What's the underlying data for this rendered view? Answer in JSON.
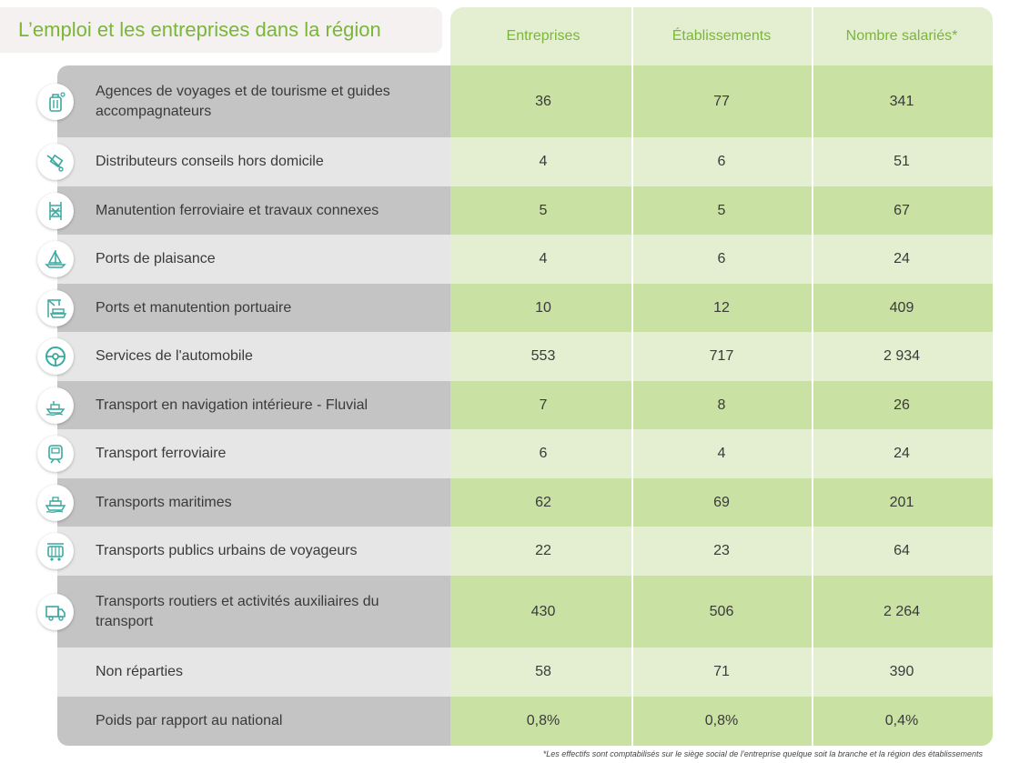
{
  "title": "L’emploi et les entreprises dans la région",
  "columns": [
    "Entreprises",
    "Établissements",
    "Nombre salariés*"
  ],
  "rows": [
    {
      "label": "Agences de voyages et de tourisme et guides accompagnateurs",
      "icon": "luggage-icon",
      "values": [
        "36",
        "77",
        "341"
      ]
    },
    {
      "label": "Distributeurs conseils hors domicile",
      "icon": "trolley-icon",
      "values": [
        "4",
        "6",
        "51"
      ]
    },
    {
      "label": "Manutention ferroviaire et travaux connexes",
      "icon": "rail-tools-icon",
      "values": [
        "5",
        "5",
        "67"
      ]
    },
    {
      "label": "Ports de plaisance",
      "icon": "sailboat-icon",
      "values": [
        "4",
        "6",
        "24"
      ]
    },
    {
      "label": "Ports et manutention portuaire",
      "icon": "port-crane-icon",
      "values": [
        "10",
        "12",
        "409"
      ]
    },
    {
      "label": "Services de l'automobile",
      "icon": "steering-wheel-icon",
      "values": [
        "553",
        "717",
        "2 934"
      ]
    },
    {
      "label": "Transport en navigation intérieure - Fluvial",
      "icon": "river-boat-icon",
      "values": [
        "7",
        "8",
        "26"
      ]
    },
    {
      "label": "Transport ferroviaire",
      "icon": "train-icon",
      "values": [
        "6",
        "4",
        "24"
      ]
    },
    {
      "label": "Transports maritimes",
      "icon": "ship-icon",
      "values": [
        "62",
        "69",
        "201"
      ]
    },
    {
      "label": "Transports publics urbains de voyageurs",
      "icon": "tram-icon",
      "values": [
        "22",
        "23",
        "64"
      ]
    },
    {
      "label": "Transports routiers et activités auxiliaires du transport",
      "icon": "truck-icon",
      "values": [
        "430",
        "506",
        "2 264"
      ]
    },
    {
      "label": "Non réparties",
      "icon": "",
      "values": [
        "58",
        "71",
        "390"
      ]
    },
    {
      "label": "Poids par rapport au national",
      "icon": "",
      "values": [
        "0,8%",
        "0,8%",
        "0,4%"
      ]
    }
  ],
  "footnote": "*Les effectifs sont comptabilisés sur le siège social de l’entreprise quelque soit la branche et la région des établissements",
  "colors": {
    "accent_green": "#7ab637",
    "dark_gray": "#c4c4c4",
    "light_gray": "#e6e6e6",
    "dark_green": "#c9e1a2",
    "light_green": "#e4efd2",
    "icon_teal": "#3aa99f"
  }
}
